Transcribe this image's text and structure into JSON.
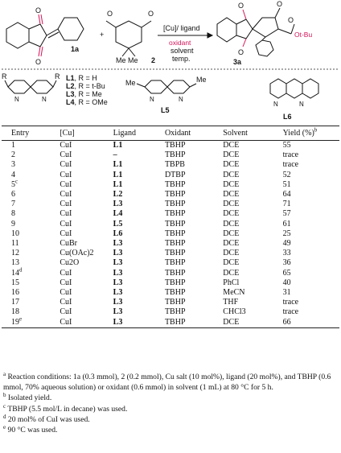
{
  "scheme": {
    "catalyst": "[Cu]/ ligand",
    "oxidant": "oxidant",
    "solvent": "solvent",
    "temp": "temp.",
    "plus": "+",
    "cmpd_1a": "1a",
    "cmpd_2": "2",
    "cmpd_3a": "3a",
    "me_me": "Me Me",
    "otbu": "Ot-Bu",
    "ligand_rows": [
      {
        "code": "L1",
        "text": ", R = H"
      },
      {
        "code": "L2",
        "text": ", R = t-Bu"
      },
      {
        "code": "L3",
        "text": ", R = Me"
      },
      {
        "code": "L4",
        "text": ", R = OMe"
      }
    ],
    "l5": "L5",
    "l6": "L6",
    "r_label": "R",
    "me_label": "Me"
  },
  "table": {
    "headers": [
      "Entry",
      "[Cu]",
      "Ligand",
      "Oxidant",
      "Solvent",
      "Yield (%)"
    ],
    "yield_sup": "b",
    "rows": [
      {
        "entry": "1",
        "sup": "",
        "cu": "CuI",
        "ligand": "L1",
        "oxidant": "TBHP",
        "solvent": "DCE",
        "yield": "55"
      },
      {
        "entry": "2",
        "sup": "",
        "cu": "CuI",
        "ligand": "–",
        "oxidant": "TBHP",
        "solvent": "DCE",
        "yield": "trace"
      },
      {
        "entry": "3",
        "sup": "",
        "cu": "CuI",
        "ligand": "L1",
        "oxidant": "TBPB",
        "solvent": "DCE",
        "yield": "trace"
      },
      {
        "entry": "4",
        "sup": "",
        "cu": "CuI",
        "ligand": "L1",
        "oxidant": "DTBP",
        "solvent": "DCE",
        "yield": "52"
      },
      {
        "entry": "5",
        "sup": "c",
        "cu": "CuI",
        "ligand": "L1",
        "oxidant": "TBHP",
        "solvent": "DCE",
        "yield": "51"
      },
      {
        "entry": "6",
        "sup": "",
        "cu": "CuI",
        "ligand": "L2",
        "oxidant": "TBHP",
        "solvent": "DCE",
        "yield": "64"
      },
      {
        "entry": "7",
        "sup": "",
        "cu": "CuI",
        "ligand": "L3",
        "oxidant": "TBHP",
        "solvent": "DCE",
        "yield": "71"
      },
      {
        "entry": "8",
        "sup": "",
        "cu": "CuI",
        "ligand": "L4",
        "oxidant": "TBHP",
        "solvent": "DCE",
        "yield": "57"
      },
      {
        "entry": "9",
        "sup": "",
        "cu": "CuI",
        "ligand": "L5",
        "oxidant": "TBHP",
        "solvent": "DCE",
        "yield": "61"
      },
      {
        "entry": "10",
        "sup": "",
        "cu": "CuI",
        "ligand": "L6",
        "oxidant": "TBHP",
        "solvent": "DCE",
        "yield": "25"
      },
      {
        "entry": "11",
        "sup": "",
        "cu": "CuBr",
        "ligand": "L3",
        "oxidant": "TBHP",
        "solvent": "DCE",
        "yield": "49"
      },
      {
        "entry": "12",
        "sup": "",
        "cu": "Cu(OAc)2",
        "ligand": "L3",
        "oxidant": "TBHP",
        "solvent": "DCE",
        "yield": "33"
      },
      {
        "entry": "13",
        "sup": "",
        "cu": "Cu2O",
        "ligand": "L3",
        "oxidant": "TBHP",
        "solvent": "DCE",
        "yield": "36"
      },
      {
        "entry": "14",
        "sup": "d",
        "cu": "CuI",
        "ligand": "L3",
        "oxidant": "TBHP",
        "solvent": "DCE",
        "yield": "65"
      },
      {
        "entry": "15",
        "sup": "",
        "cu": "CuI",
        "ligand": "L3",
        "oxidant": "TBHP",
        "solvent": "PhCl",
        "yield": "40"
      },
      {
        "entry": "16",
        "sup": "",
        "cu": "CuI",
        "ligand": "L3",
        "oxidant": "TBHP",
        "solvent": "MeCN",
        "yield": "31"
      },
      {
        "entry": "17",
        "sup": "",
        "cu": "CuI",
        "ligand": "L3",
        "oxidant": "TBHP",
        "solvent": "THF",
        "yield": "trace"
      },
      {
        "entry": "18",
        "sup": "",
        "cu": "CuI",
        "ligand": "L3",
        "oxidant": "TBHP",
        "solvent": "CHCl3",
        "yield": "trace"
      },
      {
        "entry": "19",
        "sup": "e",
        "cu": "CuI",
        "ligand": "L3",
        "oxidant": "TBHP",
        "solvent": "DCE",
        "yield": "66"
      }
    ]
  },
  "footnotes": {
    "a_mark": "a",
    "a_text": "Reaction conditions: 1a (0.3 mmol), 2 (0.2 mmol), Cu salt (10 mol%), ligand (20 mol%), and TBHP (0.6 mmol, 70% aqueous solution) or oxidant (0.6 mmol) in solvent (1 mL) at 80 °C for 5 h.",
    "b_mark": "b",
    "b_text": "Isolated yield.",
    "c_mark": "c",
    "c_text": "TBHP (5.5 mol/L in decane) was used.",
    "d_mark": "d",
    "d_text": "20 mol% of CuI was used.",
    "e_mark": "e",
    "e_text": "90 °C was used."
  }
}
